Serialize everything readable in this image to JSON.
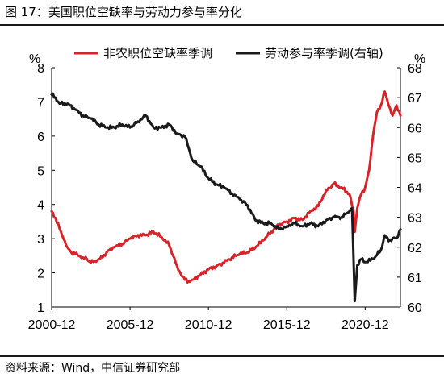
{
  "figure": {
    "title": "图 17：美国职位空缺率与劳动力参与率分化",
    "source": "资料来源：Wind，中信证券研究部"
  },
  "colors": {
    "red": "#d8232a",
    "black": "#1a1a1a"
  },
  "chart_data": {
    "type": "line",
    "legend_position": "top",
    "grid": false,
    "x_range": [
      "2000-12",
      "2023-03"
    ],
    "x_ticks": [
      "2000-12",
      "2005-12",
      "2010-12",
      "2015-12",
      "2020-12"
    ],
    "left_axis": {
      "unit": "%",
      "ylim": [
        1,
        8
      ],
      "ticks": [
        "1",
        "2",
        "3",
        "4",
        "5",
        "6",
        "7",
        "8"
      ]
    },
    "right_axis": {
      "unit": "%",
      "ylim": [
        60,
        68
      ],
      "ticks": [
        "60",
        "61",
        "62",
        "63",
        "64",
        "65",
        "66",
        "67",
        "68"
      ]
    },
    "series": [
      {
        "name": "非农职位空缺率季调",
        "axis": "left",
        "color": "#d8232a",
        "points": [
          [
            "2000-12",
            3.8
          ],
          [
            "2001-03",
            3.6
          ],
          [
            "2001-06",
            3.3
          ],
          [
            "2001-09",
            3.0
          ],
          [
            "2001-12",
            2.75
          ],
          [
            "2002-03",
            2.6
          ],
          [
            "2002-06",
            2.55
          ],
          [
            "2002-09",
            2.5
          ],
          [
            "2002-12",
            2.45
          ],
          [
            "2003-03",
            2.4
          ],
          [
            "2003-06",
            2.3
          ],
          [
            "2003-09",
            2.35
          ],
          [
            "2003-12",
            2.4
          ],
          [
            "2004-03",
            2.45
          ],
          [
            "2004-06",
            2.6
          ],
          [
            "2004-09",
            2.7
          ],
          [
            "2004-12",
            2.75
          ],
          [
            "2005-06",
            2.85
          ],
          [
            "2005-12",
            3.0
          ],
          [
            "2006-06",
            3.1
          ],
          [
            "2006-12",
            3.1
          ],
          [
            "2007-06",
            3.2
          ],
          [
            "2007-12",
            3.05
          ],
          [
            "2008-03",
            2.95
          ],
          [
            "2008-06",
            2.8
          ],
          [
            "2008-09",
            2.5
          ],
          [
            "2008-12",
            2.2
          ],
          [
            "2009-03",
            1.95
          ],
          [
            "2009-06",
            1.8
          ],
          [
            "2009-09",
            1.75
          ],
          [
            "2009-12",
            1.8
          ],
          [
            "2010-06",
            1.95
          ],
          [
            "2010-12",
            2.1
          ],
          [
            "2011-06",
            2.2
          ],
          [
            "2011-12",
            2.3
          ],
          [
            "2012-06",
            2.45
          ],
          [
            "2012-12",
            2.55
          ],
          [
            "2013-06",
            2.6
          ],
          [
            "2013-12",
            2.75
          ],
          [
            "2014-06",
            2.95
          ],
          [
            "2014-12",
            3.2
          ],
          [
            "2015-06",
            3.4
          ],
          [
            "2015-12",
            3.5
          ],
          [
            "2016-06",
            3.6
          ],
          [
            "2016-12",
            3.55
          ],
          [
            "2017-06",
            3.8
          ],
          [
            "2017-12",
            3.95
          ],
          [
            "2018-06",
            4.4
          ],
          [
            "2018-12",
            4.6
          ],
          [
            "2019-06",
            4.5
          ],
          [
            "2019-12",
            4.3
          ],
          [
            "2020-03",
            3.8
          ],
          [
            "2020-04",
            3.2
          ],
          [
            "2020-06",
            3.9
          ],
          [
            "2020-09",
            4.3
          ],
          [
            "2020-12",
            4.5
          ],
          [
            "2021-03",
            5.0
          ],
          [
            "2021-06",
            6.0
          ],
          [
            "2021-09",
            6.7
          ],
          [
            "2021-12",
            6.9
          ],
          [
            "2022-03",
            7.3
          ],
          [
            "2022-06",
            6.9
          ],
          [
            "2022-09",
            6.6
          ],
          [
            "2022-12",
            6.9
          ],
          [
            "2023-03",
            6.6
          ]
        ]
      },
      {
        "name": "劳动参与率季调(右轴)",
        "axis": "right",
        "color": "#1a1a1a",
        "points": [
          [
            "2000-12",
            67.1
          ],
          [
            "2001-03",
            67.0
          ],
          [
            "2001-06",
            66.8
          ],
          [
            "2001-12",
            66.8
          ],
          [
            "2002-06",
            66.6
          ],
          [
            "2002-12",
            66.4
          ],
          [
            "2003-06",
            66.3
          ],
          [
            "2003-12",
            66.1
          ],
          [
            "2004-06",
            66.0
          ],
          [
            "2004-12",
            66.0
          ],
          [
            "2005-06",
            66.1
          ],
          [
            "2005-12",
            66.0
          ],
          [
            "2006-06",
            66.2
          ],
          [
            "2006-12",
            66.4
          ],
          [
            "2007-06",
            66.0
          ],
          [
            "2007-12",
            66.0
          ],
          [
            "2008-06",
            66.1
          ],
          [
            "2008-12",
            65.8
          ],
          [
            "2009-06",
            65.7
          ],
          [
            "2009-12",
            64.9
          ],
          [
            "2010-06",
            64.7
          ],
          [
            "2010-12",
            64.3
          ],
          [
            "2011-06",
            64.1
          ],
          [
            "2011-12",
            64.0
          ],
          [
            "2012-06",
            63.8
          ],
          [
            "2012-12",
            63.6
          ],
          [
            "2013-06",
            63.4
          ],
          [
            "2013-12",
            62.9
          ],
          [
            "2014-06",
            62.8
          ],
          [
            "2014-12",
            62.8
          ],
          [
            "2015-06",
            62.6
          ],
          [
            "2015-12",
            62.7
          ],
          [
            "2016-06",
            62.8
          ],
          [
            "2016-12",
            62.7
          ],
          [
            "2017-06",
            62.8
          ],
          [
            "2017-12",
            62.7
          ],
          [
            "2018-06",
            62.9
          ],
          [
            "2018-12",
            63.0
          ],
          [
            "2019-06",
            63.0
          ],
          [
            "2019-12",
            63.2
          ],
          [
            "2020-02",
            63.3
          ],
          [
            "2020-04",
            60.2
          ],
          [
            "2020-06",
            61.4
          ],
          [
            "2020-09",
            61.6
          ],
          [
            "2020-12",
            61.5
          ],
          [
            "2021-06",
            61.6
          ],
          [
            "2021-12",
            61.9
          ],
          [
            "2022-03",
            62.4
          ],
          [
            "2022-06",
            62.2
          ],
          [
            "2022-09",
            62.3
          ],
          [
            "2022-12",
            62.3
          ],
          [
            "2023-03",
            62.6
          ]
        ]
      }
    ]
  }
}
